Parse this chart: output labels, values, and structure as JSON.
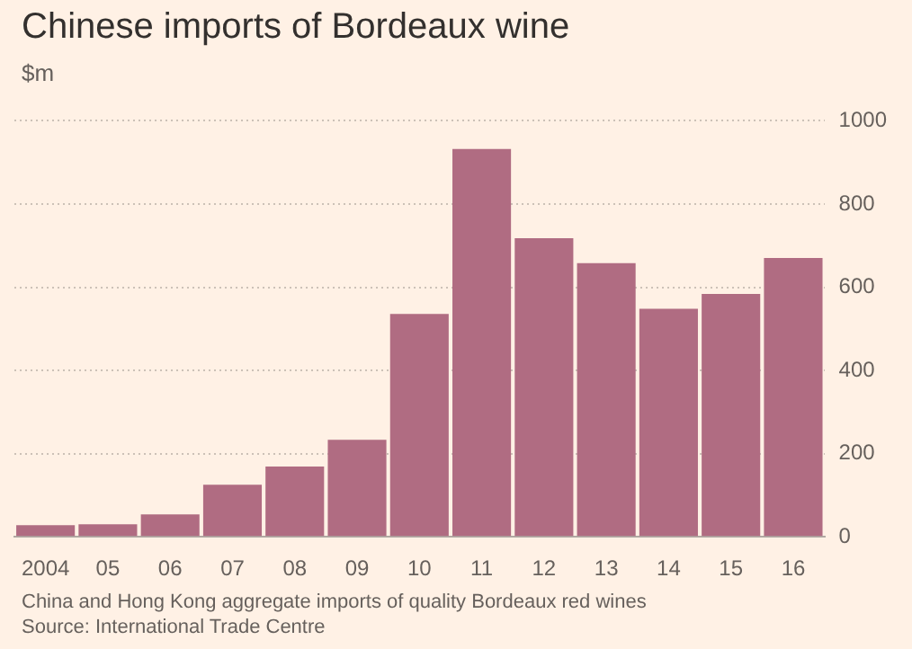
{
  "chart_data": {
    "type": "bar",
    "title": "Chinese imports of Bordeaux wine",
    "subtitle": "$m",
    "categories": [
      "2004",
      "05",
      "06",
      "07",
      "08",
      "09",
      "10",
      "11",
      "12",
      "13",
      "14",
      "15",
      "16"
    ],
    "values": [
      28,
      30,
      54,
      125,
      169,
      233,
      536,
      932,
      718,
      658,
      548,
      584,
      670
    ],
    "color": "#b06c82",
    "ylim": [
      0,
      1000
    ],
    "yticks": [
      0,
      200,
      400,
      600,
      800,
      1000
    ],
    "grid": "y",
    "annotations": [
      "China and Hong Kong aggregate imports of quality Bordeaux red wines",
      "Source: International Trade Centre"
    ]
  }
}
